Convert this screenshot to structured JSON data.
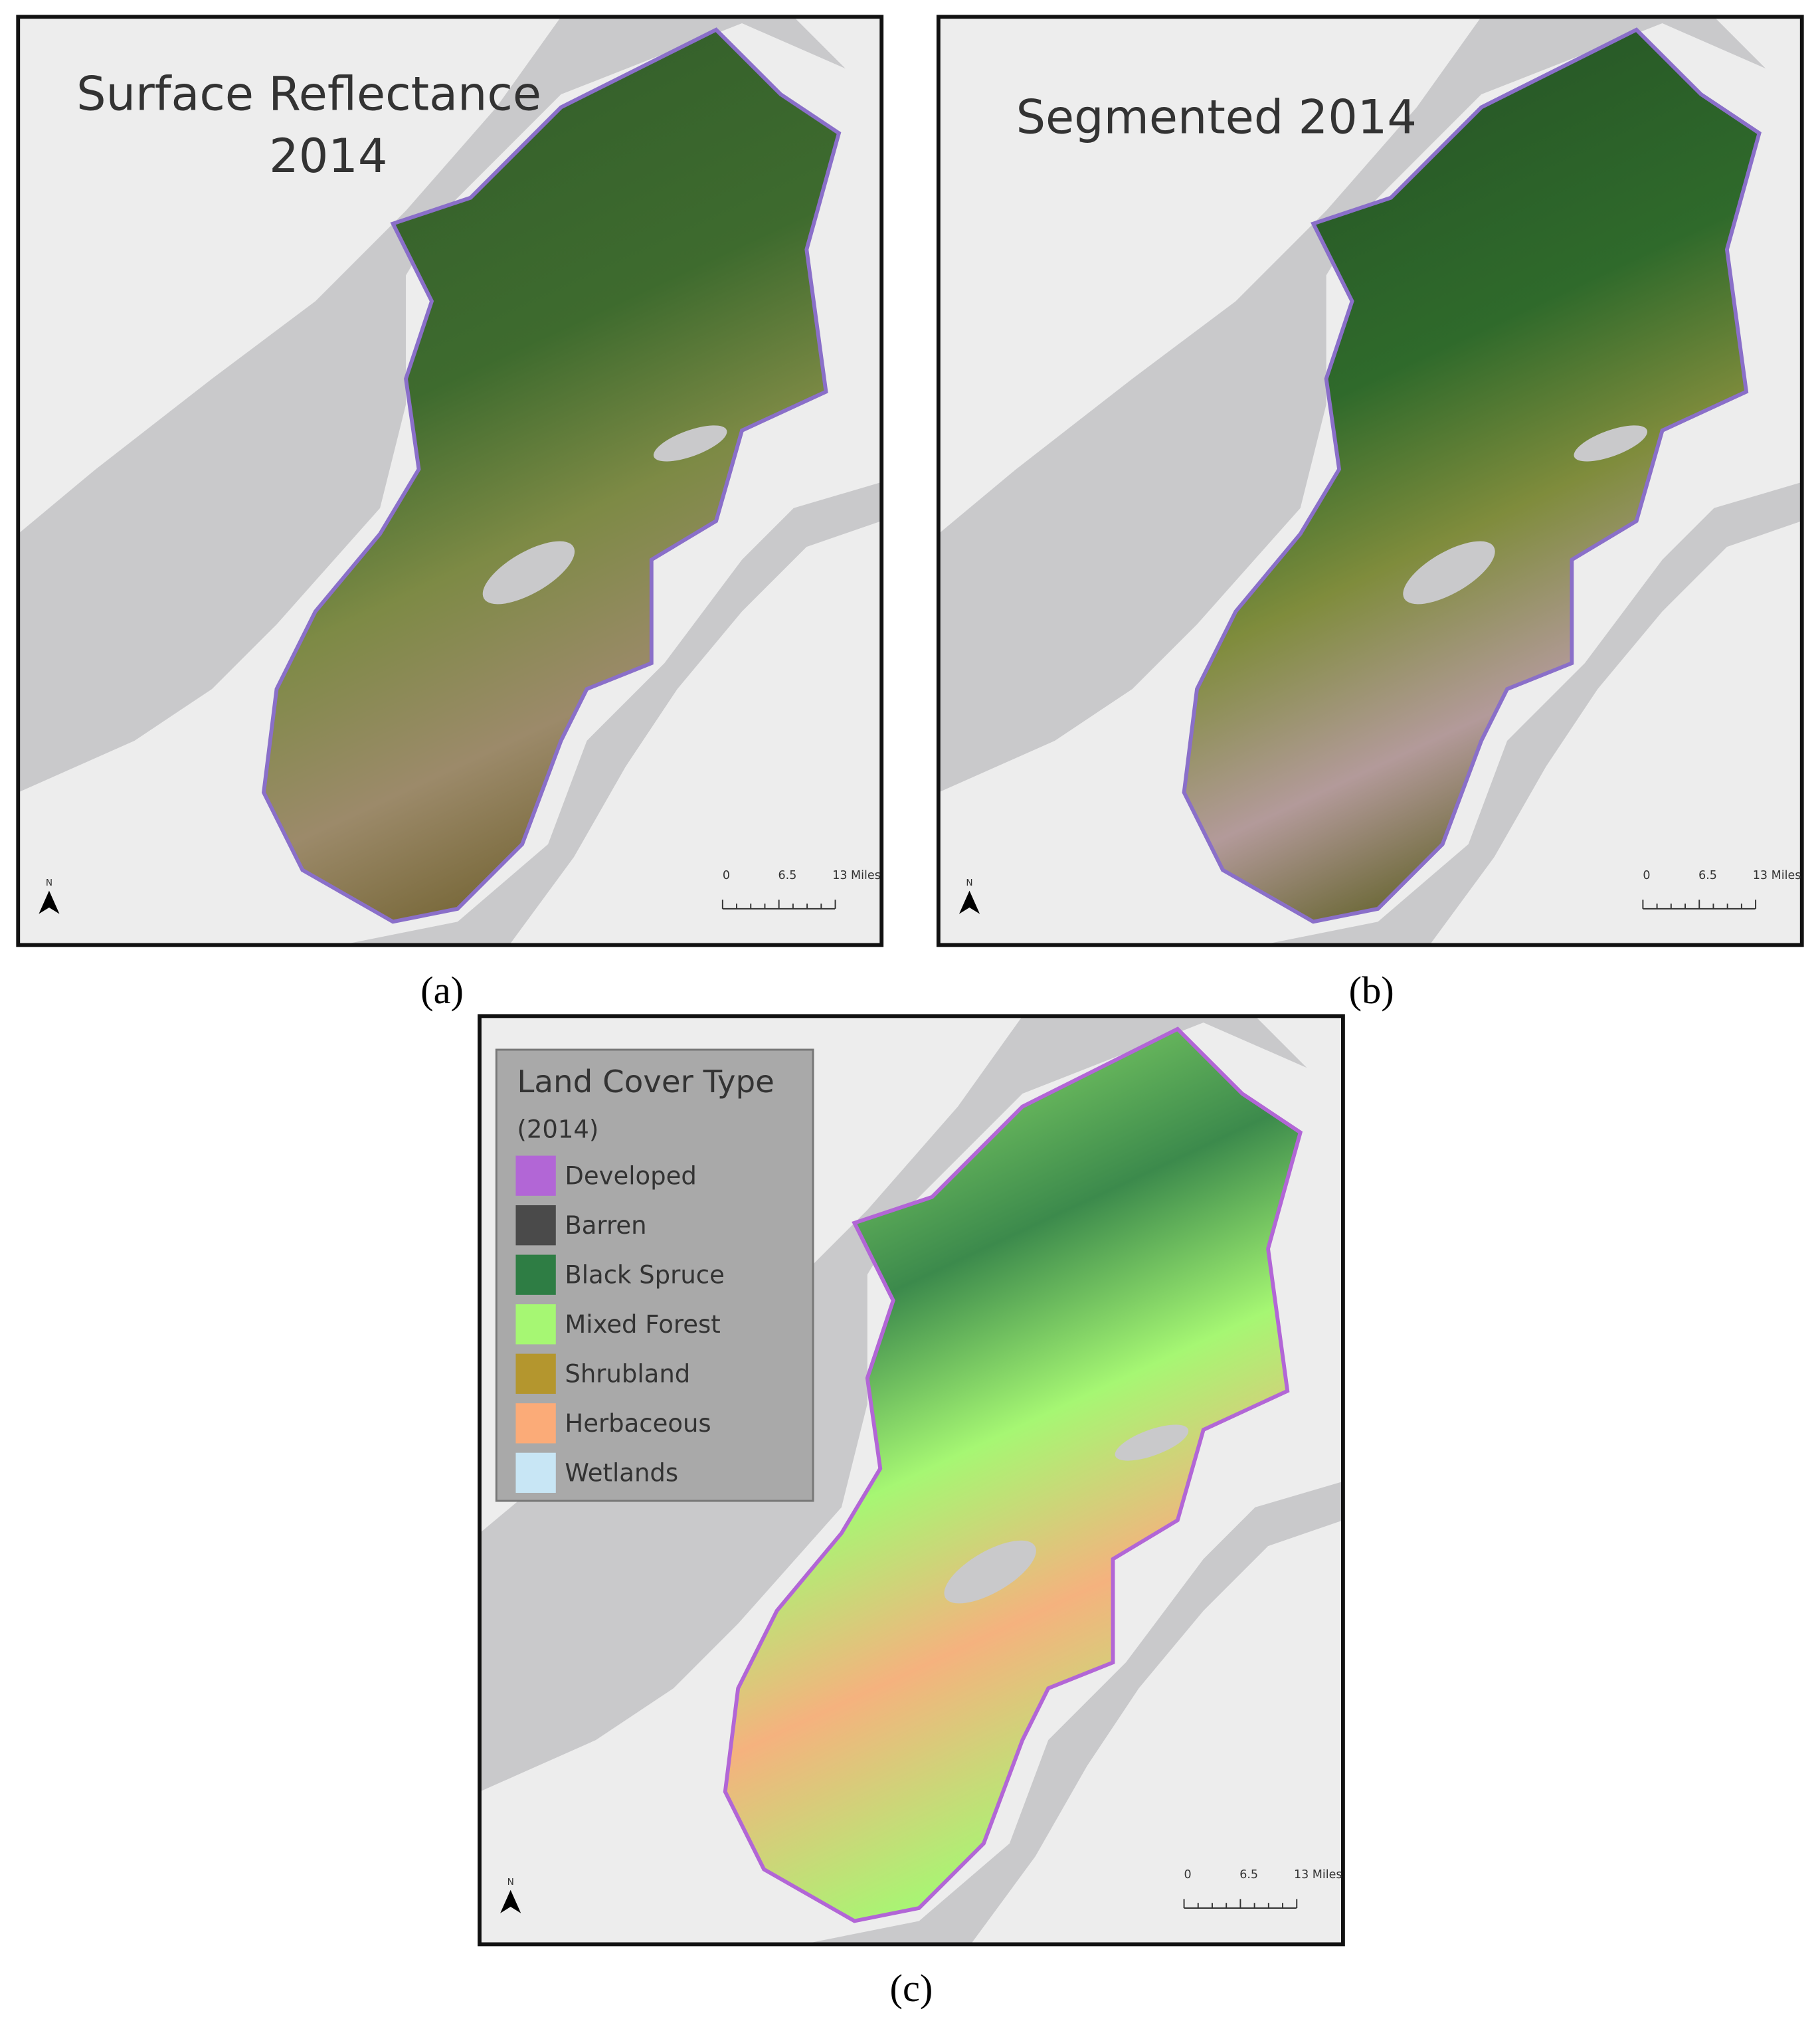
{
  "panels": [
    {
      "title": [
        "Surface Reflectance",
        "2014"
      ],
      "caption": "(a)",
      "north": "N",
      "scale_bar": [
        "0",
        "6.5",
        "13 Miles"
      ]
    },
    {
      "title": [
        "Segmented 2014"
      ],
      "caption": "(b)",
      "north": "N",
      "scale_bar": [
        "0",
        "6.5",
        "13 Miles"
      ]
    },
    {
      "caption": "(c)",
      "north": "N",
      "scale_bar": [
        "0",
        "6.5",
        "13 Miles"
      ],
      "legend": {
        "title": "Land Cover Type",
        "subtitle": "(2014)",
        "items": [
          {
            "label": "Developed",
            "color": "#b266d6"
          },
          {
            "label": "Barren",
            "color": "#4a4a4a"
          },
          {
            "label": "Black Spruce",
            "color": "#2e7d44"
          },
          {
            "label": "Mixed Forest",
            "color": "#a6f773"
          },
          {
            "label": "Shrubland",
            "color": "#b4962e"
          },
          {
            "label": "Herbaceous",
            "color": "#fbab78"
          },
          {
            "label": "Wetlands",
            "color": "#c8e6f5"
          }
        ]
      }
    }
  ]
}
